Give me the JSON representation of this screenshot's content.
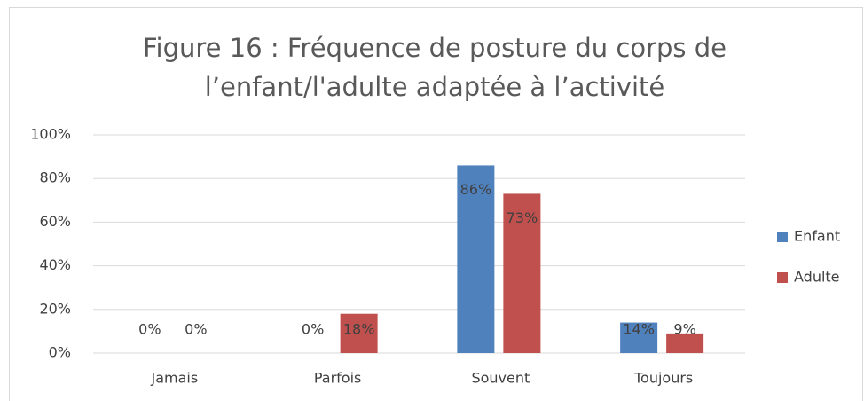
{
  "chart_data": {
    "type": "bar",
    "title": [
      "Figure 16 : Fréquence de posture du corps de",
      "l’enfant/l'adulte adaptée à l’activité"
    ],
    "categories": [
      "Jamais",
      "Parfois",
      "Souvent",
      "Toujours"
    ],
    "series": [
      {
        "name": "Enfant",
        "color": "#4f81bd",
        "values": [
          0,
          0,
          86,
          14
        ],
        "value_labels": [
          "0%",
          "0%",
          "86%",
          "14%"
        ]
      },
      {
        "name": "Adulte",
        "color": "#c0504d",
        "values": [
          0,
          18,
          73,
          9
        ],
        "value_labels": [
          "0%",
          "18%",
          "73%",
          "9%"
        ]
      }
    ],
    "ylim": [
      0,
      100
    ],
    "yticks": [
      {
        "value": 0,
        "label": "0%"
      },
      {
        "value": 20,
        "label": "20%"
      },
      {
        "value": 40,
        "label": "40%"
      },
      {
        "value": 60,
        "label": "60%"
      },
      {
        "value": 80,
        "label": "80%"
      },
      {
        "value": 100,
        "label": "100%"
      }
    ],
    "grid": true,
    "legend": "right"
  }
}
